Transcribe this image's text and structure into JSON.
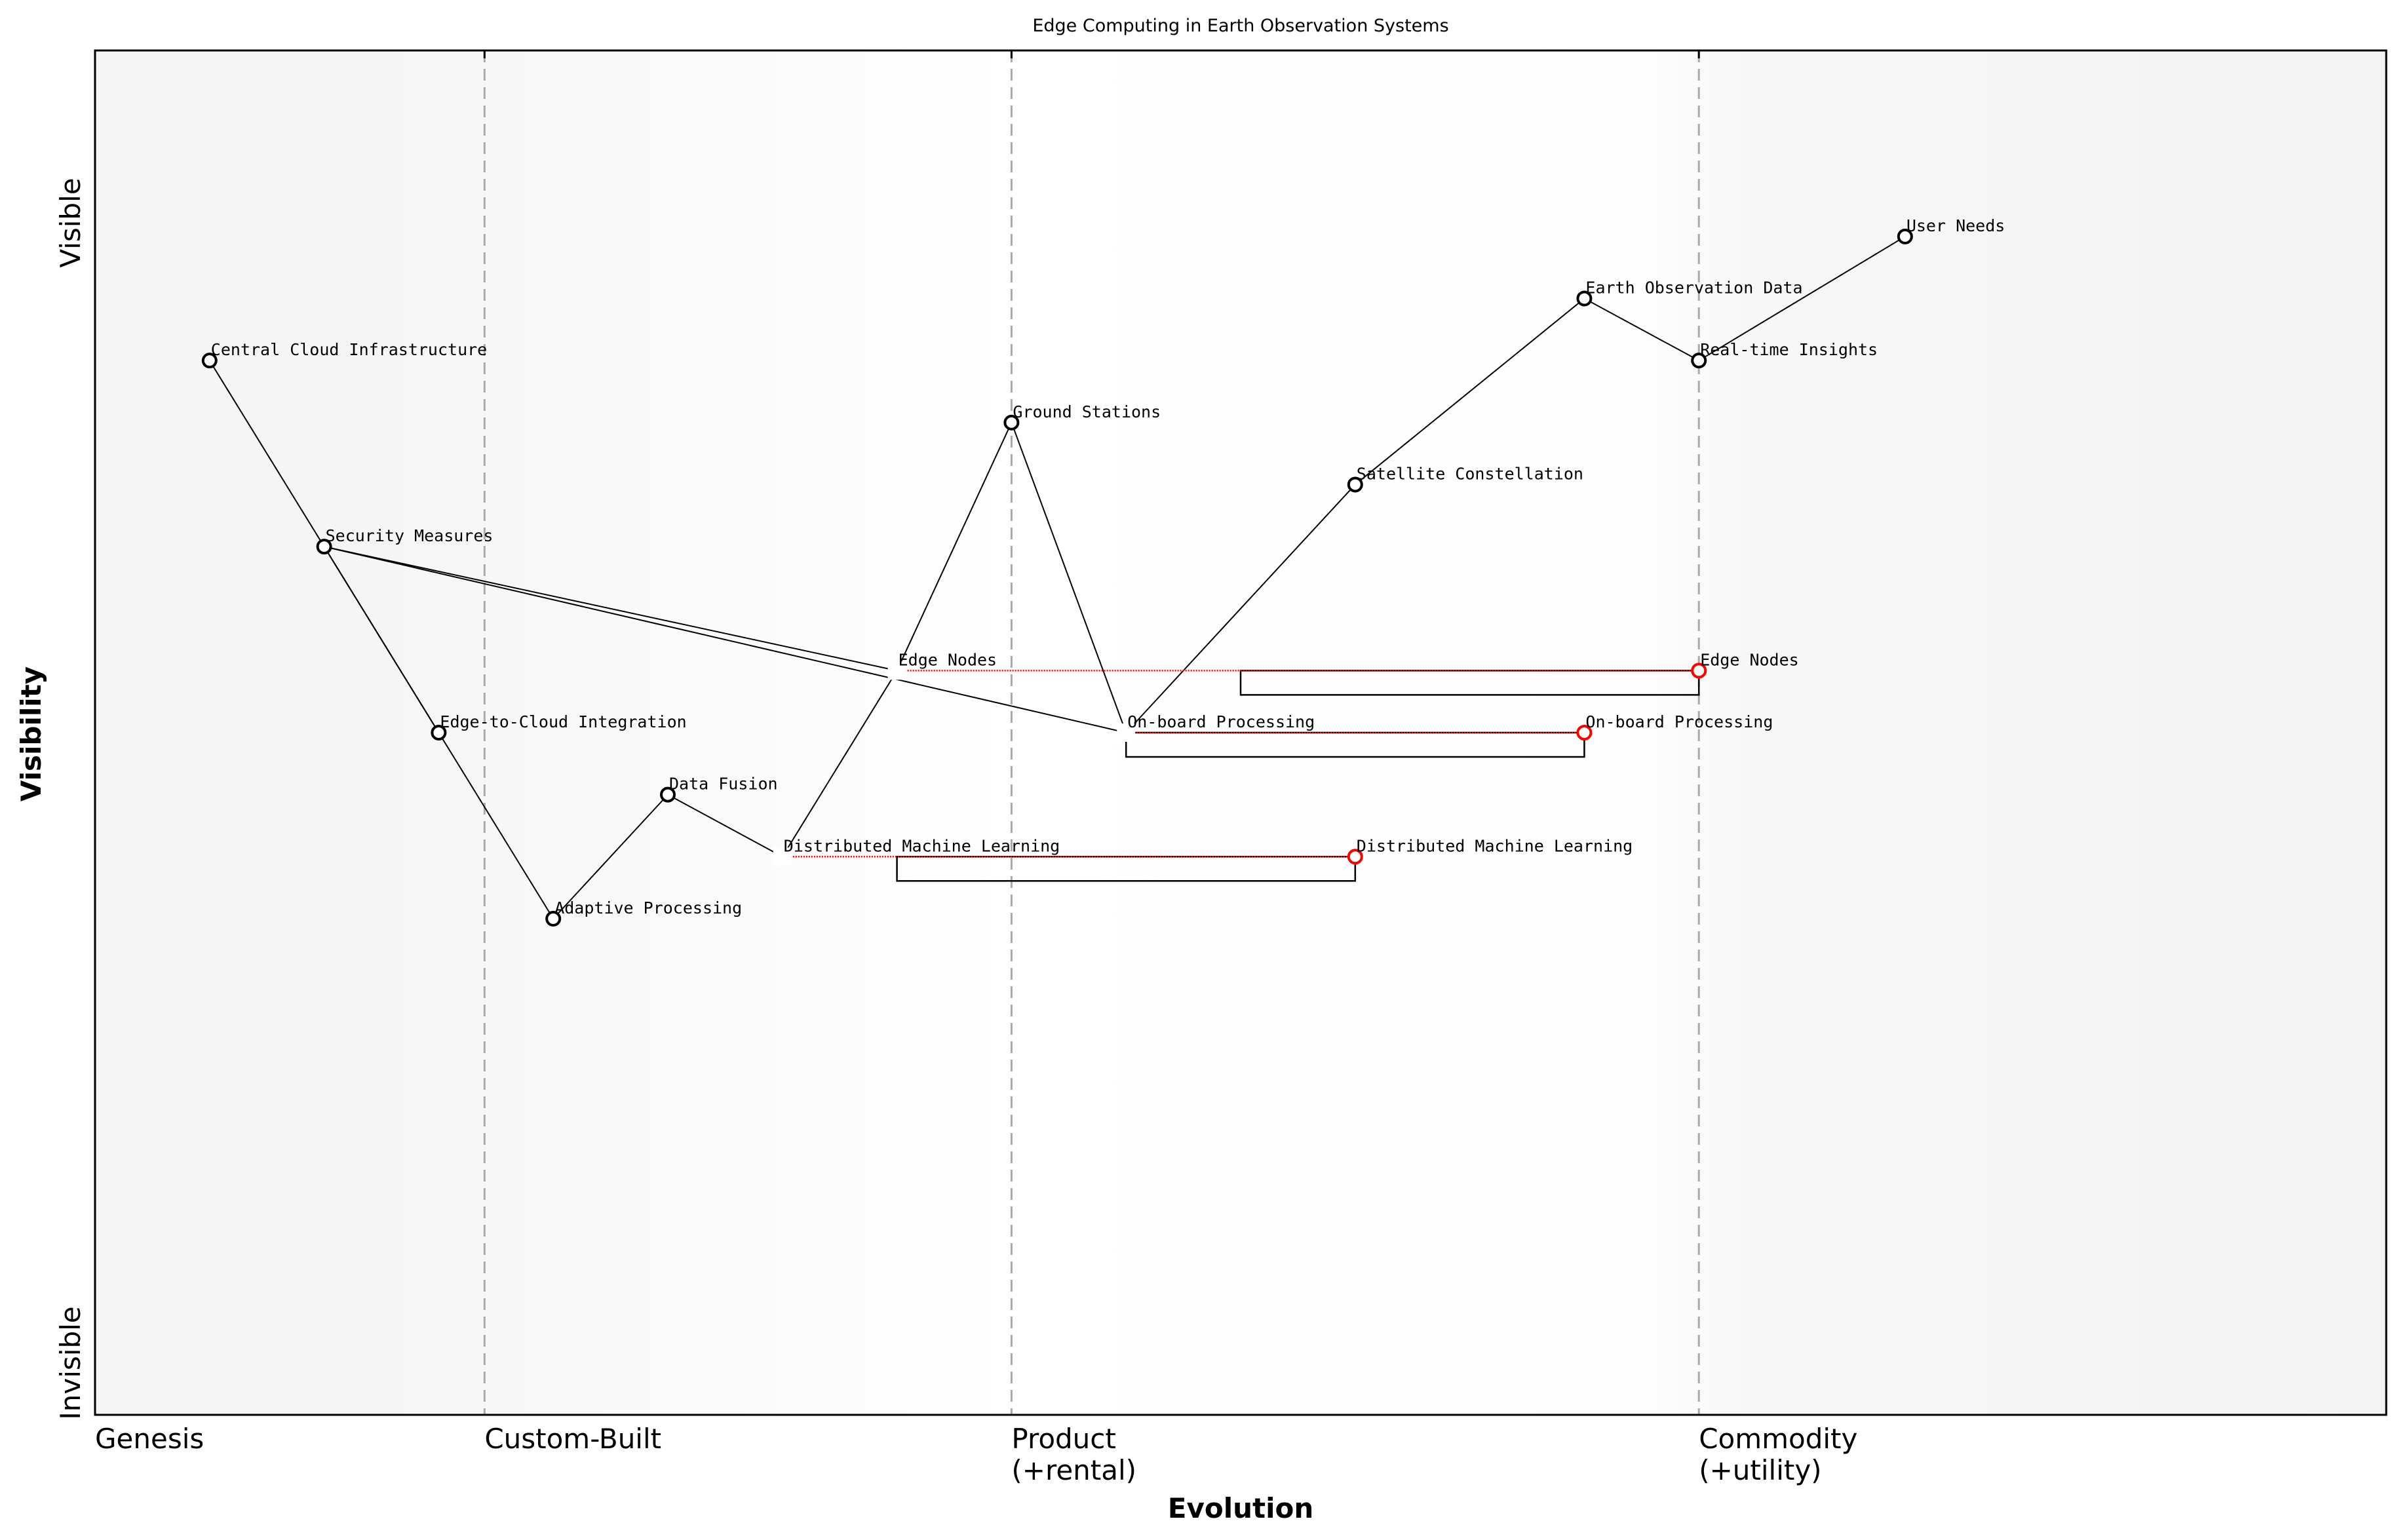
{
  "title": "Edge Computing in Earth Observation Systems",
  "x_axis": {
    "label": "Evolution",
    "stages": [
      {
        "value": 0.0,
        "label": "Genesis"
      },
      {
        "value": 0.17,
        "label": "Custom-Built"
      },
      {
        "value": 0.4,
        "label": "Product\n(+rental)"
      },
      {
        "value": 0.7,
        "label": "Commodity\n(+utility)"
      }
    ]
  },
  "y_axis": {
    "label": "Visibility",
    "top_label": "Visible",
    "bottom_label": "Invisible"
  },
  "chart_data": {
    "type": "wardley-map",
    "xlim": [
      0,
      1
    ],
    "ylim": [
      0,
      1.1
    ],
    "components": [
      {
        "id": "user_needs",
        "label": "User Needs",
        "evolution": 0.79,
        "visibility": 0.95
      },
      {
        "id": "eo_data",
        "label": "Earth Observation Data",
        "evolution": 0.65,
        "visibility": 0.9
      },
      {
        "id": "realtime",
        "label": "Real-time Insights",
        "evolution": 0.7,
        "visibility": 0.85
      },
      {
        "id": "central_cloud",
        "label": "Central Cloud Infrastructure",
        "evolution": 0.05,
        "visibility": 0.85
      },
      {
        "id": "ground_stations",
        "label": "Ground Stations",
        "evolution": 0.4,
        "visibility": 0.8
      },
      {
        "id": "satellite",
        "label": "Satellite Constellation",
        "evolution": 0.55,
        "visibility": 0.75
      },
      {
        "id": "security",
        "label": "Security Measures",
        "evolution": 0.1,
        "visibility": 0.7
      },
      {
        "id": "edge_cloud",
        "label": "Edge-to-Cloud Integration",
        "evolution": 0.15,
        "visibility": 0.55
      },
      {
        "id": "data_fusion",
        "label": "Data Fusion",
        "evolution": 0.25,
        "visibility": 0.5
      },
      {
        "id": "adaptive",
        "label": "Adaptive Processing",
        "evolution": 0.2,
        "visibility": 0.4
      },
      {
        "id": "edge_nodes",
        "label": "Edge Nodes",
        "evolution": 0.35,
        "visibility": 0.6,
        "hidden_marker": true
      },
      {
        "id": "onboard",
        "label": "On-board Processing",
        "evolution": 0.45,
        "visibility": 0.55,
        "hidden_marker": true
      },
      {
        "id": "dml",
        "label": "Distributed Machine Learning",
        "evolution": 0.3,
        "visibility": 0.45,
        "hidden_marker": true
      }
    ],
    "evolved": [
      {
        "from": "edge_nodes",
        "label": "Edge Nodes",
        "evolution": 0.7,
        "visibility": 0.6
      },
      {
        "from": "onboard",
        "label": "On-board Processing",
        "evolution": 0.65,
        "visibility": 0.55
      },
      {
        "from": "dml",
        "label": "Distributed Machine Learning",
        "evolution": 0.55,
        "visibility": 0.45
      }
    ],
    "pipelines": [
      {
        "component": "edge_nodes",
        "start": 0.5,
        "end": 0.7
      },
      {
        "component": "onboard",
        "start": 0.45,
        "end": 0.65
      },
      {
        "component": "dml",
        "start": 0.35,
        "end": 0.55
      }
    ],
    "links": [
      [
        "user_needs",
        "realtime"
      ],
      [
        "realtime",
        "eo_data"
      ],
      [
        "eo_data",
        "satellite"
      ],
      [
        "satellite",
        "onboard"
      ],
      [
        "ground_stations",
        "onboard"
      ],
      [
        "ground_stations",
        "edge_nodes"
      ],
      [
        "edge_nodes",
        "dml"
      ],
      [
        "dml",
        "data_fusion"
      ],
      [
        "data_fusion",
        "adaptive"
      ],
      [
        "adaptive",
        "edge_cloud"
      ],
      [
        "edge_cloud",
        "security"
      ],
      [
        "security",
        "edge_cloud"
      ],
      [
        "security",
        "central_cloud"
      ],
      [
        "security",
        "edge_nodes"
      ],
      [
        "security",
        "onboard"
      ]
    ],
    "colors": {
      "node": "#000000",
      "evolved": "#ff0000",
      "stage_line": "#aaaaaa",
      "background": "#f5f5f5"
    }
  }
}
